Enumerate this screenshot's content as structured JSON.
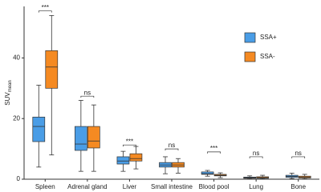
{
  "chart_data": {
    "type": "box",
    "y_label": "SUV",
    "y_label_sub": "mean",
    "categories": [
      "Spleen",
      "Adrenal gland",
      "Liver",
      "Small intestine",
      "Blood pool",
      "Lung",
      "Bone"
    ],
    "ylim": [
      0,
      57
    ],
    "yticks": [
      0,
      20,
      40
    ],
    "legend": "top-right",
    "series": [
      {
        "name": "SSA+",
        "color": "#4a9de6",
        "values": [
          {
            "min": 4,
            "q1": 12.4,
            "median": 17.4,
            "q3": 20.5,
            "max": 31
          },
          {
            "min": 2.6,
            "q1": 9.5,
            "median": 11.6,
            "q3": 17.4,
            "max": 26
          },
          {
            "min": 2.6,
            "q1": 5,
            "median": 6,
            "q3": 7.4,
            "max": 9.2
          },
          {
            "min": 1.8,
            "q1": 4,
            "median": 4.7,
            "q3": 5.5,
            "max": 7.4
          },
          {
            "min": 1,
            "q1": 1.6,
            "median": 1.8,
            "q3": 2.4,
            "max": 2.9
          },
          {
            "min": 0.1,
            "q1": 0.3,
            "median": 0.5,
            "q3": 0.7,
            "max": 1.1
          },
          {
            "min": 0.2,
            "q1": 0.6,
            "median": 0.9,
            "q3": 1.3,
            "max": 2.0
          }
        ]
      },
      {
        "name": "SSA-",
        "color": "#f58a22",
        "values": [
          {
            "min": 8,
            "q1": 30,
            "median": 37,
            "q3": 42.4,
            "max": 54
          },
          {
            "min": 2.6,
            "q1": 10.3,
            "median": 12.6,
            "q3": 17.4,
            "max": 24.5
          },
          {
            "min": 3.4,
            "q1": 6,
            "median": 6.8,
            "q3": 8.4,
            "max": 10.8
          },
          {
            "min": 2,
            "q1": 4,
            "median": 4.7,
            "q3": 5.5,
            "max": 6.8
          },
          {
            "min": 0.5,
            "q1": 1.1,
            "median": 1.3,
            "q3": 1.6,
            "max": 2.1
          },
          {
            "min": 0.1,
            "q1": 0.3,
            "median": 0.5,
            "q3": 0.8,
            "max": 1.3
          },
          {
            "min": 0.1,
            "q1": 0.4,
            "median": 0.7,
            "q3": 1.0,
            "max": 1.6
          }
        ]
      }
    ],
    "annotations": [
      {
        "text": "***",
        "y": 55.5
      },
      {
        "text": "ns",
        "y": 27.4
      },
      {
        "text": "***",
        "y": 11.3
      },
      {
        "text": "ns",
        "y": 10
      },
      {
        "text": "***",
        "y": 9
      },
      {
        "text": "ns",
        "y": 7.4
      },
      {
        "text": "ns",
        "y": 7.4
      }
    ]
  }
}
